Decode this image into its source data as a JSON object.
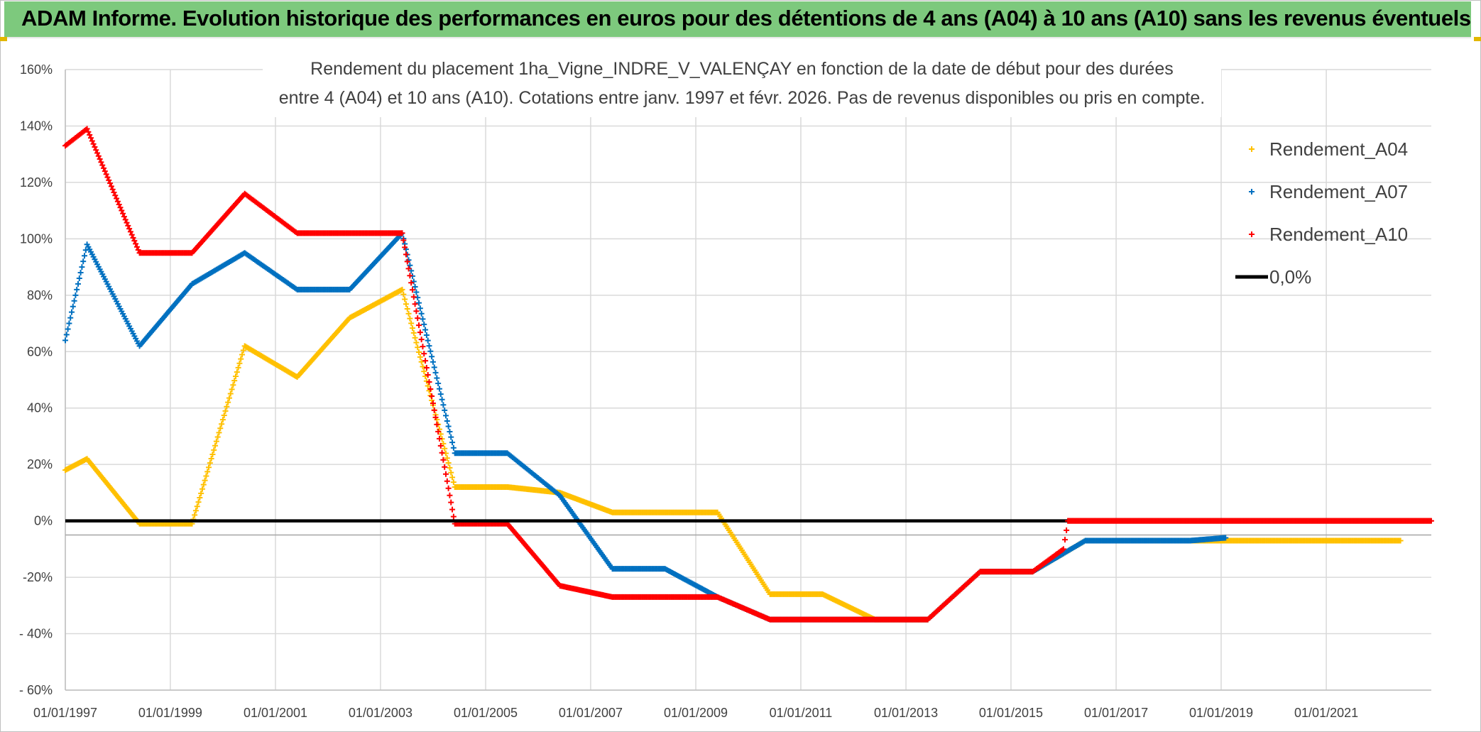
{
  "header": {
    "title": "ADAM Informe. Evolution historique des performances en euros pour des détentions de 4 ans (A04) à 10 ans (A10) sans les revenus éventuels"
  },
  "chart_data": {
    "type": "scatter",
    "title_line1": "Rendement du placement 1ha_Vigne_INDRE_V_VALENÇAY en fonction de la date de début pour des durées",
    "title_line2": "entre 4 (A04) et 10 ans (A10). Cotations entre janv. 1997 et févr. 2026. Pas de revenus disponibles ou pris en compte.",
    "x_axis": {
      "type": "date",
      "range": [
        "1997-01-01",
        "2023-01-01"
      ],
      "tick_labels": [
        "01/01/1997",
        "01/01/1999",
        "01/01/2001",
        "01/01/2003",
        "01/01/2005",
        "01/01/2007",
        "01/01/2009",
        "01/01/2011",
        "01/01/2013",
        "01/01/2015",
        "01/01/2017",
        "01/01/2019",
        "01/01/2021"
      ]
    },
    "y_axis": {
      "unit": "%",
      "range": [
        -60,
        160
      ],
      "tick_values": [
        160,
        140,
        120,
        100,
        80,
        60,
        40,
        20,
        0,
        -20,
        -40,
        -60
      ],
      "tick_labels": [
        "160%",
        "140%",
        "120%",
        "100%",
        "80%",
        "60%",
        "40%",
        "20%",
        "0%",
        "-20%",
        "- 40%",
        "- 60%"
      ]
    },
    "grid": true,
    "legend_position": "top-right",
    "series": [
      {
        "name": "Rendement_A04",
        "color": "#ffc000",
        "marker": "plus",
        "points": [
          [
            "1997-01-01",
            18
          ],
          [
            "1997-06-01",
            22
          ],
          [
            "1998-06-01",
            -1
          ],
          [
            "1999-06-01",
            -1
          ],
          [
            "2000-06-01",
            62
          ],
          [
            "2001-06-01",
            51
          ],
          [
            "2002-06-01",
            72
          ],
          [
            "2003-06-01",
            82
          ],
          [
            "2004-06-01",
            12
          ],
          [
            "2005-06-01",
            12
          ],
          [
            "2006-06-01",
            10
          ],
          [
            "2007-06-01",
            3
          ],
          [
            "2008-06-01",
            3
          ],
          [
            "2009-06-01",
            3
          ],
          [
            "2010-06-01",
            -26
          ],
          [
            "2011-06-01",
            -26
          ],
          [
            "2012-06-01",
            -35
          ],
          [
            "2013-06-01",
            -35
          ],
          [
            "2014-06-01",
            -18
          ],
          [
            "2015-06-01",
            -18
          ],
          [
            "2016-06-01",
            -7
          ],
          [
            "2017-06-01",
            -7
          ],
          [
            "2018-06-01",
            -7
          ],
          [
            "2019-06-01",
            -7
          ],
          [
            "2020-06-01",
            -7
          ],
          [
            "2021-06-01",
            -7
          ],
          [
            "2022-06-01",
            -7
          ]
        ]
      },
      {
        "name": "Rendement_A07",
        "color": "#0070c0",
        "marker": "plus",
        "points": [
          [
            "1997-01-01",
            64
          ],
          [
            "1997-06-01",
            98
          ],
          [
            "1998-06-01",
            62
          ],
          [
            "1999-06-01",
            84
          ],
          [
            "2000-06-01",
            95
          ],
          [
            "2001-06-01",
            82
          ],
          [
            "2002-06-01",
            82
          ],
          [
            "2003-06-01",
            102
          ],
          [
            "2004-06-01",
            24
          ],
          [
            "2005-06-01",
            24
          ],
          [
            "2006-06-01",
            9
          ],
          [
            "2007-06-01",
            -17
          ],
          [
            "2008-06-01",
            -17
          ],
          [
            "2009-06-01",
            -27
          ],
          [
            "2010-06-01",
            -35
          ],
          [
            "2011-06-01",
            -35
          ],
          [
            "2012-06-01",
            -35
          ],
          [
            "2013-06-01",
            -35
          ],
          [
            "2014-06-01",
            -18
          ],
          [
            "2015-06-01",
            -18
          ],
          [
            "2016-06-01",
            -7
          ],
          [
            "2017-06-01",
            -7
          ],
          [
            "2018-06-01",
            -7
          ],
          [
            "2019-02-01",
            -6
          ]
        ]
      },
      {
        "name": "Rendement_A10",
        "color": "#ff0000",
        "marker": "plus",
        "points": [
          [
            "1997-01-01",
            133
          ],
          [
            "1997-06-01",
            139
          ],
          [
            "1998-06-01",
            95
          ],
          [
            "1999-06-01",
            95
          ],
          [
            "2000-06-01",
            116
          ],
          [
            "2001-06-01",
            102
          ],
          [
            "2002-06-01",
            102
          ],
          [
            "2003-06-01",
            102
          ],
          [
            "2004-06-01",
            -1
          ],
          [
            "2005-06-01",
            -1
          ],
          [
            "2006-06-01",
            -23
          ],
          [
            "2007-06-01",
            -27
          ],
          [
            "2008-06-01",
            -27
          ],
          [
            "2009-06-01",
            -27
          ],
          [
            "2010-06-01",
            -35
          ],
          [
            "2011-06-01",
            -35
          ],
          [
            "2012-06-01",
            -35
          ],
          [
            "2013-06-01",
            -35
          ],
          [
            "2014-06-01",
            -18
          ],
          [
            "2015-06-01",
            -18
          ],
          [
            "2016-01-01",
            -10
          ],
          [
            "2016-02-01",
            0
          ],
          [
            "2017-06-01",
            0
          ],
          [
            "2019-06-01",
            0
          ],
          [
            "2021-06-01",
            0
          ],
          [
            "2023-01-01",
            0
          ]
        ]
      },
      {
        "name": "0,0%",
        "color": "#000000",
        "marker": "line",
        "points": [
          [
            "1997-01-01",
            0
          ],
          [
            "2023-01-01",
            0
          ]
        ]
      }
    ]
  }
}
